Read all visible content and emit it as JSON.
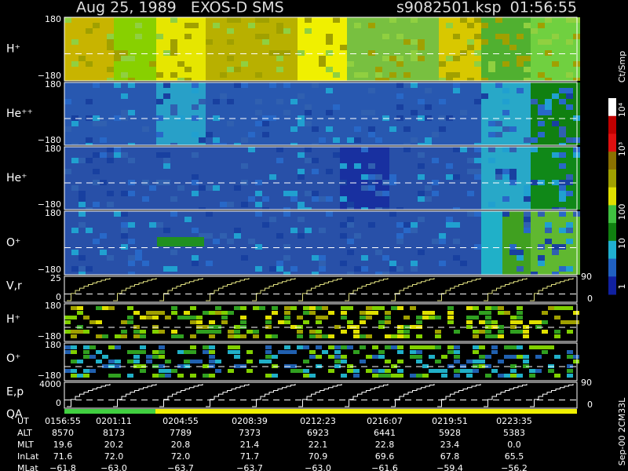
{
  "header": {
    "title": "Aug 25, 1989   EXOS-D SMS",
    "file": "s9082501.ksp",
    "time": "01:56:55"
  },
  "panels": [
    {
      "label": "H⁺",
      "ticks": [
        "180",
        "−180"
      ]
    },
    {
      "label": "He⁺⁺",
      "ticks": [
        "180",
        "−180"
      ]
    },
    {
      "label": "He⁺",
      "ticks": [
        "180",
        "−180"
      ]
    },
    {
      "label": "O⁺",
      "ticks": [
        "180",
        "−180"
      ]
    },
    {
      "label": "V,r",
      "ticks": [
        "25",
        "0"
      ],
      "right_ticks": [
        "90",
        "0"
      ]
    },
    {
      "label": "H⁺",
      "ticks": [
        "180",
        "−180"
      ]
    },
    {
      "label": "O⁺",
      "ticks": [
        "180",
        "−180"
      ]
    },
    {
      "label": "E,p",
      "ticks": [
        "4000",
        "0"
      ],
      "right_ticks": [
        "90",
        "0"
      ]
    }
  ],
  "qa_label": "QA",
  "colorbar": {
    "unit": "Ct/Smp",
    "labels": [
      "10⁴",
      "10³",
      "100",
      "10",
      "1"
    ]
  },
  "footer": "Sep-00 2CM33L",
  "table": {
    "rows": [
      [
        "UT",
        "0156:55",
        "0201:11",
        "0204:55",
        "0208:39",
        "0212:23",
        "0216:07",
        "0219:51",
        "0223:35"
      ],
      [
        "ALT",
        "8570",
        "8173",
        "7789",
        "7373",
        "6923",
        "6441",
        "5928",
        "5383"
      ],
      [
        "MLT",
        "19.6",
        "20.2",
        "20.8",
        "21.4",
        "22.1",
        "22.8",
        "23.4",
        "0.0"
      ],
      [
        "InLat",
        "71.6",
        "72.0",
        "72.0",
        "71.7",
        "70.9",
        "69.6",
        "67.8",
        "65.5"
      ],
      [
        "MLat",
        "−61.8",
        "−63.0",
        "−63.7",
        "−63.7",
        "−63.0",
        "−61.6",
        "−59.4",
        "−56.2"
      ]
    ]
  }
}
